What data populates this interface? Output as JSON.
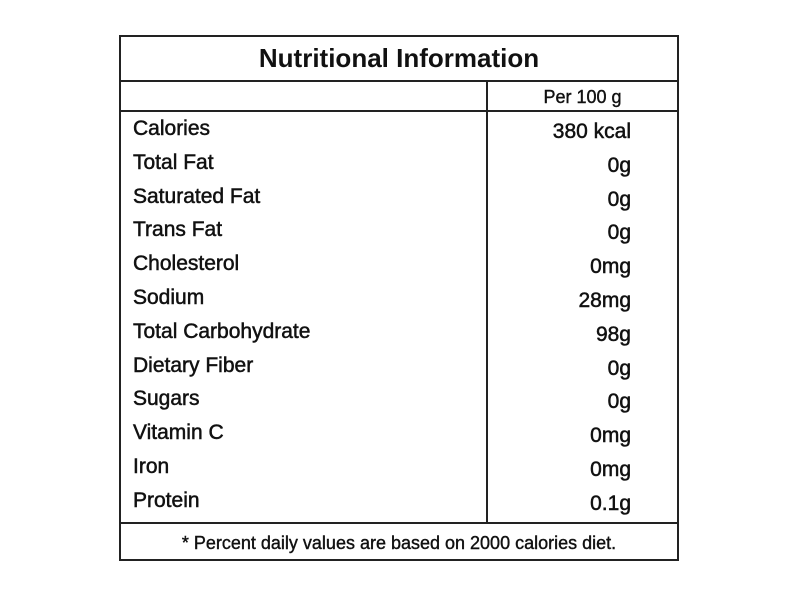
{
  "table": {
    "title": "Nutritional Information",
    "column_header": "Per 100 g",
    "rows": [
      [
        "Calories",
        "380 kcal"
      ],
      [
        "Total Fat",
        "0g"
      ],
      [
        "Saturated Fat",
        "0g"
      ],
      [
        "Trans Fat",
        "0g"
      ],
      [
        "Cholesterol",
        "0mg"
      ],
      [
        "Sodium",
        "28mg"
      ],
      [
        "Total Carbohydrate",
        "98g"
      ],
      [
        "Dietary Fiber",
        "0g"
      ],
      [
        "Sugars",
        "0g"
      ],
      [
        "Vitamin C",
        "0mg"
      ],
      [
        "Iron",
        "0mg"
      ],
      [
        "Protein",
        "0.1g"
      ]
    ],
    "footnote": "* Percent daily values are based on 2000 calories diet."
  }
}
